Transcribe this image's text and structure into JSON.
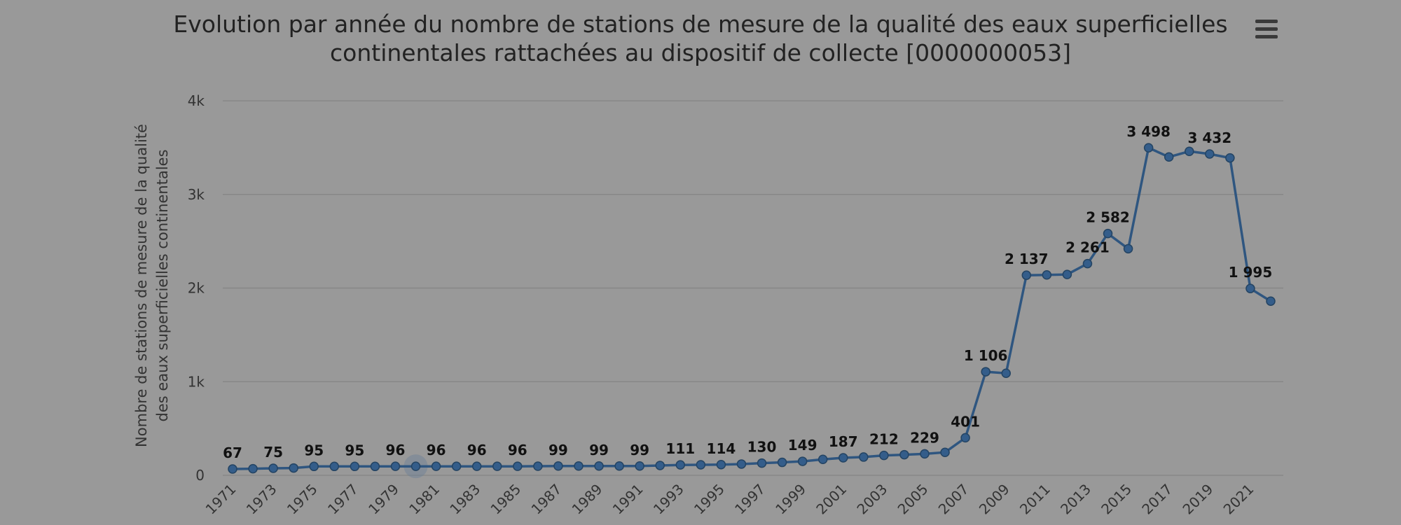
{
  "title_lines": [
    "Evolution par année du nombre de stations de mesure de la qualité des eaux superficielles",
    "continentales rattachées au dispositif de collecte [0000000053]"
  ],
  "menu_icon": "hamburger-menu-icon",
  "colors": {
    "background": "#999999",
    "series": "#2f5680",
    "point": "#345d8a",
    "grid": "#878787"
  },
  "chart_data": {
    "type": "line",
    "title": "Evolution par année du nombre de stations de mesure de la qualité des eaux superficielles continentales rattachées au dispositif de collecte [0000000053]",
    "xlabel": "",
    "ylabel": "Nombre de stations de mesure de la qualité des eaux superficielles continentales",
    "ylabel_lines": [
      "Nombre de stations de mesure de la qualité",
      "des eaux superficielles continentales"
    ],
    "ylim": [
      0,
      4000
    ],
    "y_ticks": [
      {
        "value": 0,
        "label": "0"
      },
      {
        "value": 1000,
        "label": "1k"
      },
      {
        "value": 2000,
        "label": "2k"
      },
      {
        "value": 3000,
        "label": "3k"
      },
      {
        "value": 4000,
        "label": "4k"
      }
    ],
    "x_tick_labels": [
      "1971",
      "1973",
      "1975",
      "1977",
      "1979",
      "1981",
      "1983",
      "1985",
      "1987",
      "1989",
      "1991",
      "1993",
      "1995",
      "1997",
      "1999",
      "2001",
      "2003",
      "2005",
      "2007",
      "2009",
      "2011",
      "2013",
      "2015",
      "2017",
      "2019",
      "2021"
    ],
    "grid": true,
    "legend": false,
    "x": [
      1971,
      1972,
      1973,
      1974,
      1975,
      1976,
      1977,
      1978,
      1979,
      1980,
      1981,
      1982,
      1983,
      1984,
      1985,
      1986,
      1987,
      1988,
      1989,
      1990,
      1991,
      1992,
      1993,
      1994,
      1995,
      1996,
      1997,
      1998,
      1999,
      2000,
      2001,
      2002,
      2003,
      2004,
      2005,
      2006,
      2007,
      2008,
      2009,
      2010,
      2011,
      2012,
      2013,
      2014,
      2015,
      2016,
      2017,
      2018,
      2019,
      2020,
      2021,
      2022
    ],
    "values": [
      67,
      70,
      75,
      78,
      95,
      95,
      95,
      95,
      96,
      96,
      96,
      96,
      96,
      96,
      96,
      97,
      99,
      99,
      99,
      99,
      99,
      105,
      111,
      112,
      114,
      120,
      130,
      138,
      149,
      170,
      187,
      195,
      212,
      220,
      229,
      245,
      401,
      1106,
      1090,
      2137,
      2140,
      2145,
      2261,
      2582,
      2420,
      3498,
      3400,
      3460,
      3432,
      3390,
      1995,
      1860
    ],
    "data_labels": [
      {
        "x": 1971,
        "text": "67"
      },
      {
        "x": 1973,
        "text": "75"
      },
      {
        "x": 1975,
        "text": "95"
      },
      {
        "x": 1977,
        "text": "95"
      },
      {
        "x": 1979,
        "text": "96"
      },
      {
        "x": 1981,
        "text": "96"
      },
      {
        "x": 1983,
        "text": "96"
      },
      {
        "x": 1985,
        "text": "96"
      },
      {
        "x": 1987,
        "text": "99"
      },
      {
        "x": 1989,
        "text": "99"
      },
      {
        "x": 1991,
        "text": "99"
      },
      {
        "x": 1993,
        "text": "111"
      },
      {
        "x": 1995,
        "text": "114"
      },
      {
        "x": 1997,
        "text": "130"
      },
      {
        "x": 1999,
        "text": "149"
      },
      {
        "x": 2001,
        "text": "187"
      },
      {
        "x": 2003,
        "text": "212"
      },
      {
        "x": 2005,
        "text": "229"
      },
      {
        "x": 2007,
        "text": "401"
      },
      {
        "x": 2008,
        "text": "1 106"
      },
      {
        "x": 2010,
        "text": "2 137"
      },
      {
        "x": 2013,
        "text": "2 261"
      },
      {
        "x": 2014,
        "text": "2 582"
      },
      {
        "x": 2016,
        "text": "3 498"
      },
      {
        "x": 2019,
        "text": "3 432"
      },
      {
        "x": 2021,
        "text": "1 995"
      }
    ],
    "highlighted_x": 1980
  }
}
